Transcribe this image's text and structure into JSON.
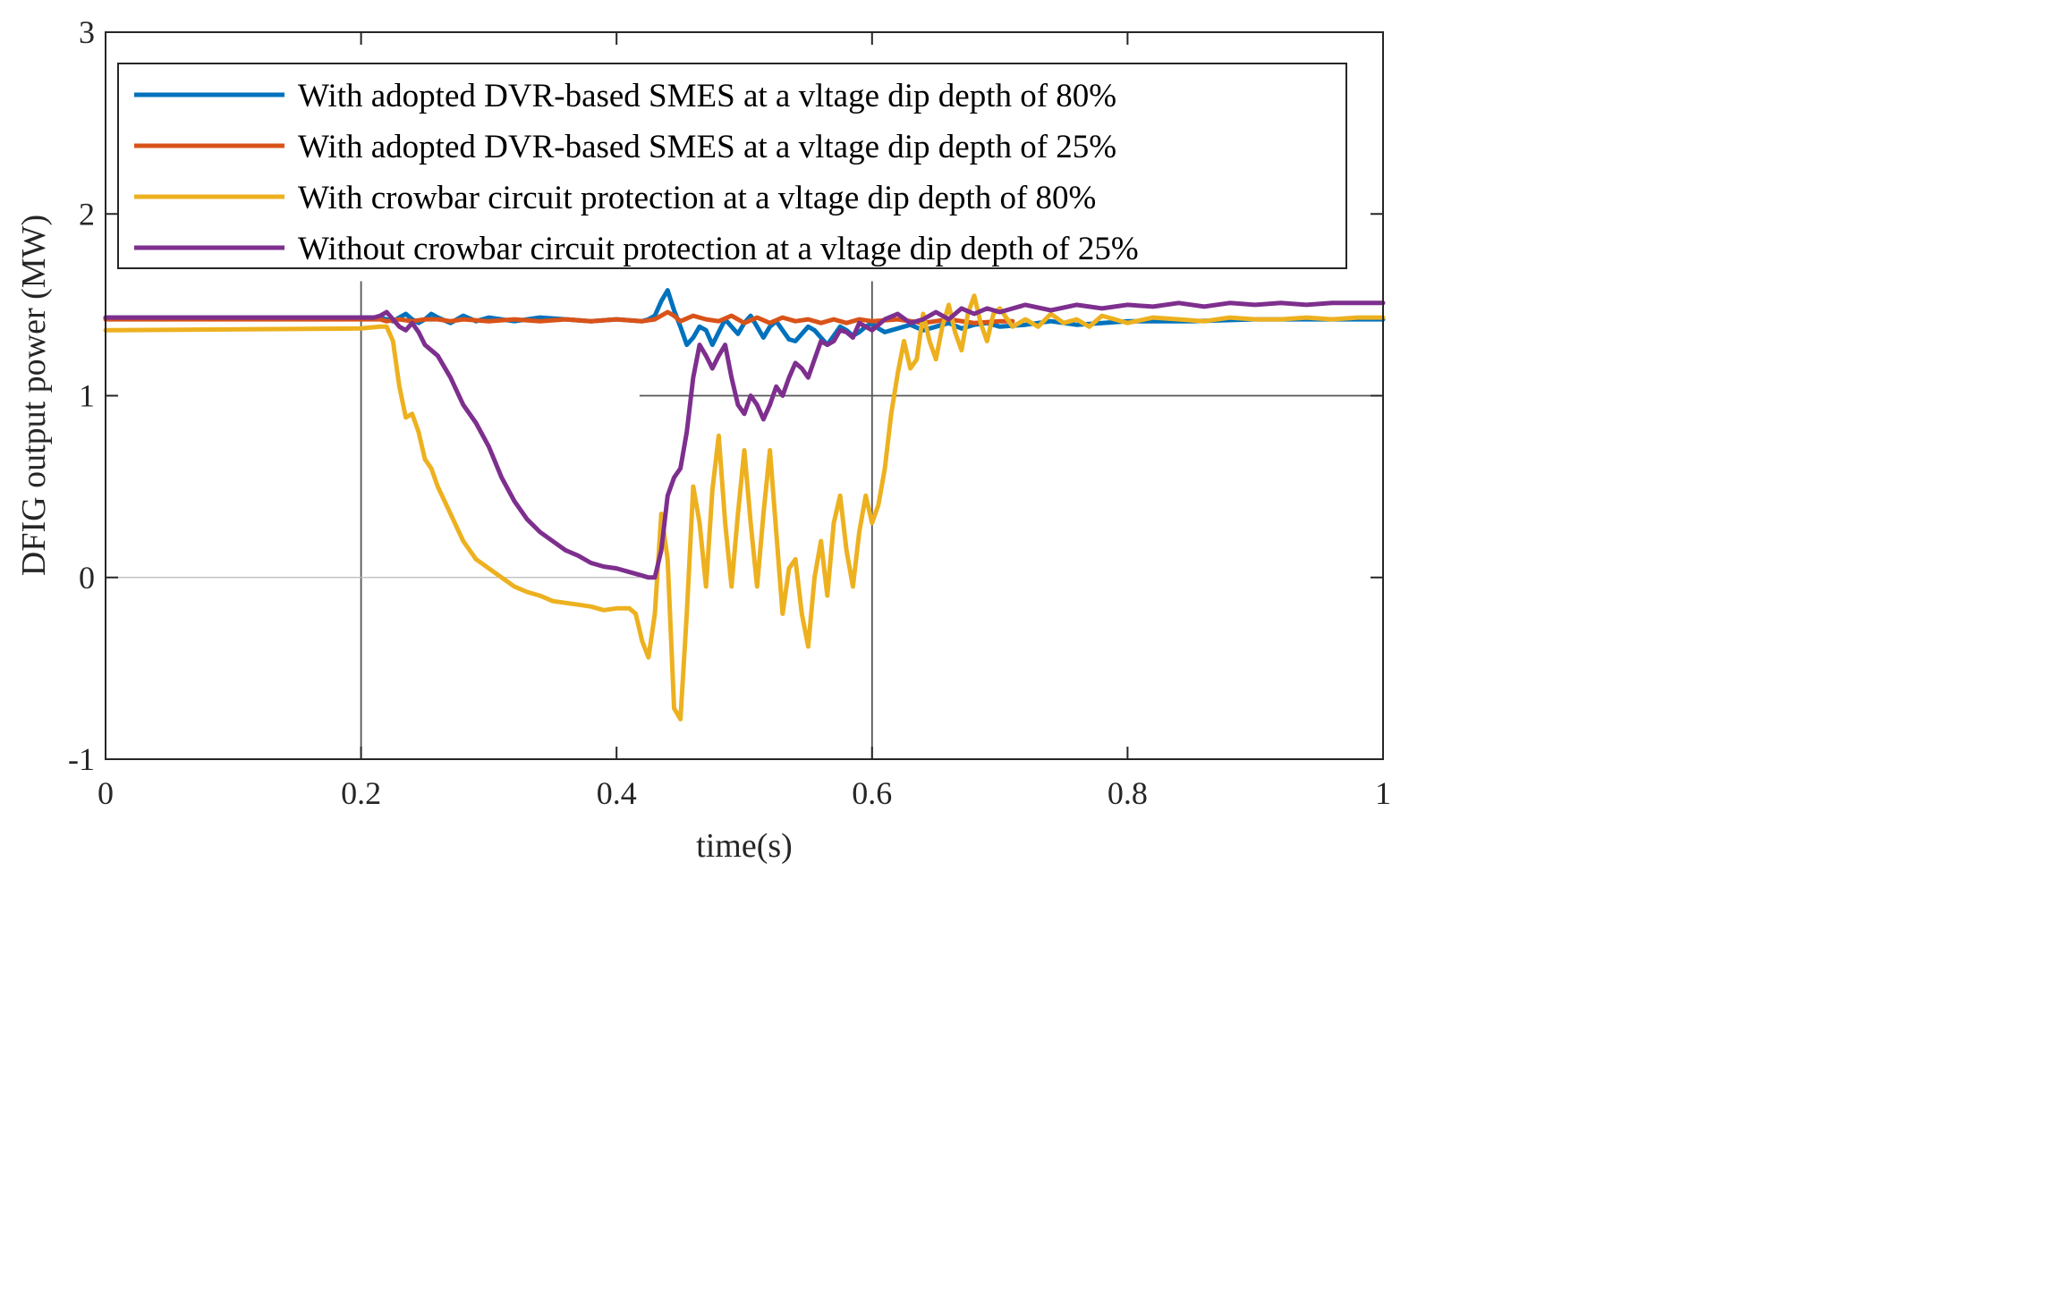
{
  "chart_data": {
    "type": "line",
    "xlabel": "time(s)",
    "ylabel": "DFIG output power (MW)",
    "xlim": [
      0,
      1
    ],
    "ylim": [
      -1,
      3
    ],
    "xticks": [
      0,
      0.2,
      0.4,
      0.6,
      0.8,
      1
    ],
    "xtick_labels": [
      "0",
      "0.2",
      "0.4",
      "0.6",
      "0.8",
      "1"
    ],
    "yticks": [
      -1,
      0,
      1,
      2,
      3
    ],
    "ytick_labels": [
      "-1",
      "0",
      "1",
      "2",
      "3"
    ],
    "grid": false,
    "legend_position": "top",
    "reference_lines": [
      {
        "orientation": "vertical",
        "x": 0.2,
        "y_range": [
          -1,
          1.63
        ]
      },
      {
        "orientation": "vertical",
        "x": 0.6,
        "y_range": [
          -1,
          1.63
        ]
      },
      {
        "orientation": "horizontal",
        "y": 1.0,
        "x_range": [
          0.418,
          1.0
        ]
      },
      {
        "orientation": "horizontal",
        "y": 0.0,
        "x_range": [
          0,
          0.418
        ]
      }
    ],
    "series": [
      {
        "name": "With adopted DVR-based SMES at a vltage dip depth of 80%",
        "color": "#0072BD",
        "x": [
          0,
          0.2,
          0.215,
          0.22,
          0.225,
          0.23,
          0.235,
          0.24,
          0.245,
          0.25,
          0.255,
          0.26,
          0.27,
          0.28,
          0.29,
          0.3,
          0.32,
          0.34,
          0.36,
          0.38,
          0.4,
          0.42,
          0.425,
          0.43,
          0.435,
          0.44,
          0.445,
          0.45,
          0.455,
          0.46,
          0.465,
          0.47,
          0.475,
          0.48,
          0.485,
          0.49,
          0.495,
          0.5,
          0.505,
          0.51,
          0.515,
          0.52,
          0.525,
          0.53,
          0.535,
          0.54,
          0.545,
          0.55,
          0.555,
          0.56,
          0.565,
          0.57,
          0.575,
          0.58,
          0.585,
          0.59,
          0.595,
          0.6,
          0.605,
          0.61,
          0.62,
          0.63,
          0.64,
          0.65,
          0.66,
          0.67,
          0.68,
          0.69,
          0.7,
          0.72,
          0.74,
          0.76,
          0.78,
          0.8,
          0.85,
          0.9,
          0.95,
          1.0
        ],
        "y": [
          1.43,
          1.43,
          1.43,
          1.42,
          1.41,
          1.43,
          1.45,
          1.42,
          1.4,
          1.42,
          1.45,
          1.43,
          1.4,
          1.44,
          1.41,
          1.43,
          1.41,
          1.43,
          1.42,
          1.41,
          1.42,
          1.41,
          1.42,
          1.44,
          1.52,
          1.58,
          1.47,
          1.38,
          1.28,
          1.32,
          1.38,
          1.36,
          1.28,
          1.35,
          1.42,
          1.38,
          1.34,
          1.4,
          1.44,
          1.38,
          1.32,
          1.38,
          1.41,
          1.36,
          1.31,
          1.3,
          1.34,
          1.38,
          1.36,
          1.32,
          1.28,
          1.33,
          1.38,
          1.36,
          1.33,
          1.35,
          1.38,
          1.4,
          1.37,
          1.35,
          1.37,
          1.39,
          1.36,
          1.38,
          1.4,
          1.37,
          1.39,
          1.4,
          1.38,
          1.39,
          1.41,
          1.39,
          1.4,
          1.41,
          1.41,
          1.42,
          1.42,
          1.42
        ]
      },
      {
        "name": "With adopted DVR-based SMES at a vltage dip depth of 25%",
        "color": "#D95319",
        "x": [
          0,
          0.2,
          0.215,
          0.22,
          0.23,
          0.24,
          0.25,
          0.26,
          0.27,
          0.28,
          0.3,
          0.32,
          0.34,
          0.36,
          0.38,
          0.4,
          0.42,
          0.43,
          0.44,
          0.445,
          0.45,
          0.46,
          0.47,
          0.48,
          0.49,
          0.5,
          0.51,
          0.52,
          0.53,
          0.54,
          0.55,
          0.56,
          0.57,
          0.58,
          0.59,
          0.6,
          0.62,
          0.64,
          0.66,
          0.68,
          0.7,
          0.71
        ],
        "y": [
          1.42,
          1.42,
          1.42,
          1.41,
          1.42,
          1.41,
          1.42,
          1.42,
          1.41,
          1.42,
          1.41,
          1.42,
          1.41,
          1.42,
          1.41,
          1.42,
          1.41,
          1.42,
          1.46,
          1.44,
          1.41,
          1.44,
          1.42,
          1.41,
          1.44,
          1.4,
          1.43,
          1.4,
          1.43,
          1.41,
          1.42,
          1.4,
          1.42,
          1.4,
          1.42,
          1.41,
          1.42,
          1.4,
          1.42,
          1.4,
          1.41,
          1.41
        ]
      },
      {
        "name": "With crowbar circuit protection  at a vltage dip depth of 80%",
        "color": "#EDB120",
        "x": [
          0,
          0.2,
          0.215,
          0.22,
          0.225,
          0.23,
          0.235,
          0.24,
          0.245,
          0.25,
          0.255,
          0.26,
          0.27,
          0.28,
          0.29,
          0.3,
          0.31,
          0.32,
          0.33,
          0.34,
          0.35,
          0.36,
          0.37,
          0.38,
          0.39,
          0.4,
          0.41,
          0.415,
          0.42,
          0.425,
          0.43,
          0.435,
          0.44,
          0.445,
          0.45,
          0.455,
          0.46,
          0.465,
          0.47,
          0.475,
          0.48,
          0.485,
          0.49,
          0.495,
          0.5,
          0.505,
          0.51,
          0.515,
          0.52,
          0.525,
          0.53,
          0.535,
          0.54,
          0.545,
          0.55,
          0.555,
          0.56,
          0.565,
          0.57,
          0.575,
          0.58,
          0.585,
          0.59,
          0.595,
          0.6,
          0.605,
          0.61,
          0.615,
          0.62,
          0.625,
          0.63,
          0.635,
          0.64,
          0.645,
          0.65,
          0.655,
          0.66,
          0.665,
          0.67,
          0.675,
          0.68,
          0.685,
          0.69,
          0.695,
          0.7,
          0.71,
          0.72,
          0.73,
          0.74,
          0.75,
          0.76,
          0.77,
          0.78,
          0.79,
          0.8,
          0.82,
          0.84,
          0.86,
          0.88,
          0.9,
          0.92,
          0.94,
          0.96,
          0.98,
          1.0
        ],
        "y": [
          1.36,
          1.37,
          1.38,
          1.38,
          1.3,
          1.05,
          0.88,
          0.9,
          0.8,
          0.65,
          0.6,
          0.5,
          0.35,
          0.2,
          0.1,
          0.05,
          0.0,
          -0.05,
          -0.08,
          -0.1,
          -0.13,
          -0.14,
          -0.15,
          -0.16,
          -0.18,
          -0.17,
          -0.17,
          -0.2,
          -0.35,
          -0.44,
          -0.2,
          0.35,
          0.1,
          -0.72,
          -0.78,
          -0.2,
          0.5,
          0.3,
          -0.05,
          0.48,
          0.78,
          0.3,
          -0.05,
          0.35,
          0.7,
          0.3,
          -0.05,
          0.35,
          0.7,
          0.25,
          -0.2,
          0.05,
          0.1,
          -0.2,
          -0.38,
          0.0,
          0.2,
          -0.1,
          0.3,
          0.45,
          0.15,
          -0.05,
          0.25,
          0.45,
          0.3,
          0.4,
          0.6,
          0.9,
          1.12,
          1.3,
          1.15,
          1.2,
          1.45,
          1.3,
          1.2,
          1.38,
          1.5,
          1.35,
          1.25,
          1.45,
          1.55,
          1.4,
          1.3,
          1.45,
          1.48,
          1.38,
          1.42,
          1.38,
          1.45,
          1.4,
          1.42,
          1.38,
          1.44,
          1.42,
          1.4,
          1.43,
          1.42,
          1.41,
          1.43,
          1.42,
          1.42,
          1.43,
          1.42,
          1.43,
          1.43
        ]
      },
      {
        "name": "Without crowbar circuit protection at a vltage dip depth of 25%",
        "color": "#7E2F8E",
        "x": [
          0,
          0.2,
          0.21,
          0.215,
          0.22,
          0.225,
          0.23,
          0.235,
          0.24,
          0.245,
          0.25,
          0.255,
          0.26,
          0.27,
          0.28,
          0.29,
          0.3,
          0.31,
          0.32,
          0.33,
          0.34,
          0.35,
          0.36,
          0.37,
          0.38,
          0.39,
          0.4,
          0.41,
          0.42,
          0.425,
          0.43,
          0.435,
          0.44,
          0.445,
          0.45,
          0.455,
          0.46,
          0.465,
          0.47,
          0.475,
          0.48,
          0.485,
          0.49,
          0.495,
          0.5,
          0.505,
          0.51,
          0.515,
          0.52,
          0.525,
          0.53,
          0.535,
          0.54,
          0.545,
          0.55,
          0.555,
          0.56,
          0.565,
          0.57,
          0.575,
          0.58,
          0.585,
          0.59,
          0.595,
          0.6,
          0.61,
          0.62,
          0.63,
          0.64,
          0.65,
          0.66,
          0.67,
          0.68,
          0.69,
          0.7,
          0.72,
          0.74,
          0.76,
          0.78,
          0.8,
          0.82,
          0.84,
          0.86,
          0.88,
          0.9,
          0.92,
          0.94,
          0.96,
          0.98,
          1.0
        ],
        "y": [
          1.43,
          1.43,
          1.43,
          1.44,
          1.46,
          1.42,
          1.38,
          1.36,
          1.4,
          1.35,
          1.28,
          1.25,
          1.22,
          1.1,
          0.95,
          0.85,
          0.72,
          0.55,
          0.42,
          0.32,
          0.25,
          0.2,
          0.15,
          0.12,
          0.08,
          0.06,
          0.05,
          0.03,
          0.01,
          0.0,
          0.0,
          0.15,
          0.45,
          0.55,
          0.6,
          0.8,
          1.1,
          1.28,
          1.22,
          1.15,
          1.22,
          1.28,
          1.1,
          0.95,
          0.9,
          1.0,
          0.95,
          0.87,
          0.95,
          1.05,
          1.0,
          1.1,
          1.18,
          1.15,
          1.1,
          1.2,
          1.3,
          1.28,
          1.3,
          1.36,
          1.35,
          1.32,
          1.4,
          1.38,
          1.36,
          1.42,
          1.45,
          1.4,
          1.42,
          1.46,
          1.42,
          1.48,
          1.45,
          1.48,
          1.46,
          1.5,
          1.47,
          1.5,
          1.48,
          1.5,
          1.49,
          1.51,
          1.49,
          1.51,
          1.5,
          1.51,
          1.5,
          1.51,
          1.51,
          1.51
        ]
      }
    ]
  }
}
